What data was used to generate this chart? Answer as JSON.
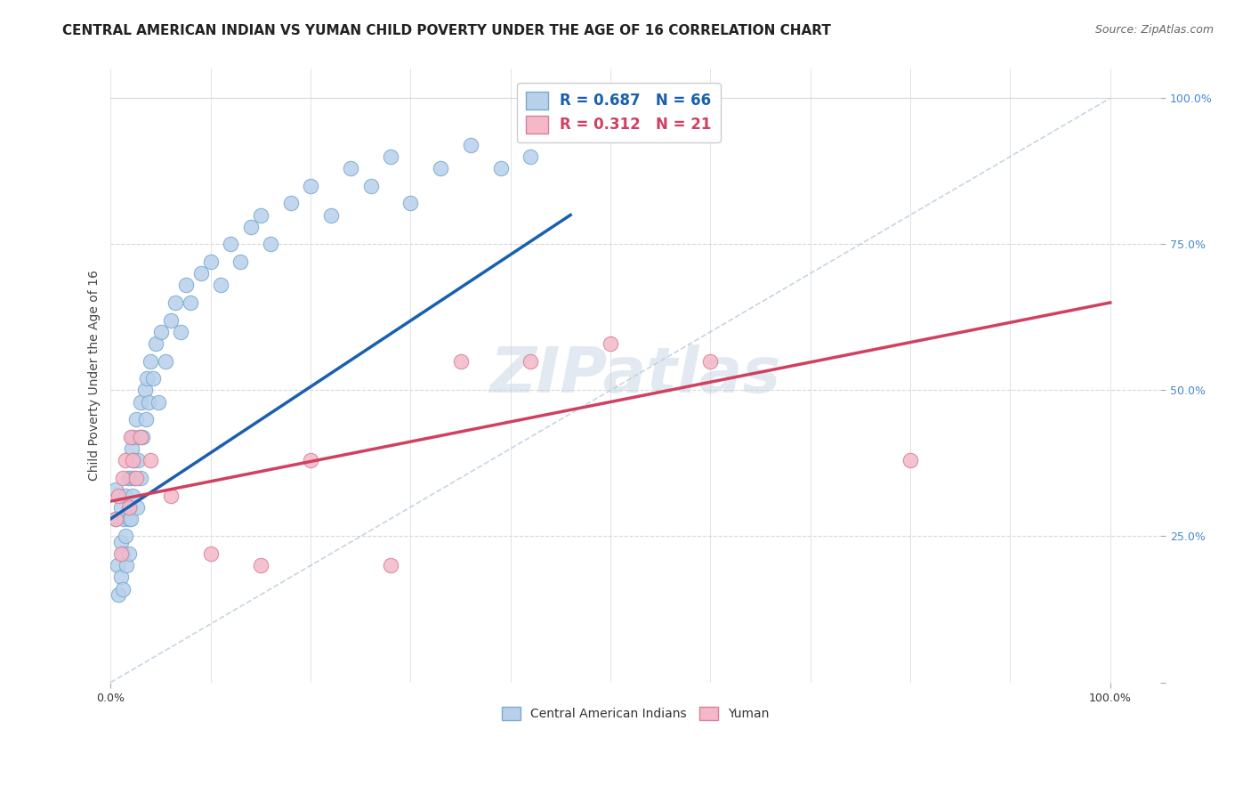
{
  "title": "CENTRAL AMERICAN INDIAN VS YUMAN CHILD POVERTY UNDER THE AGE OF 16 CORRELATION CHART",
  "source": "Source: ZipAtlas.com",
  "ylabel": "Child Poverty Under the Age of 16",
  "watermark": "ZIPatlas",
  "blue_R": 0.687,
  "blue_N": 66,
  "pink_R": 0.312,
  "pink_N": 21,
  "legend_labels": [
    "Central American Indians",
    "Yuman"
  ],
  "blue_color": "#b8d0ea",
  "blue_edge": "#7aaad0",
  "pink_color": "#f4b8c8",
  "pink_edge": "#d88098",
  "blue_line_color": "#1a5fb0",
  "pink_line_color": "#d04060",
  "ref_line_color": "#b0c4d8",
  "grid_color": "#d8d8d8",
  "blue_scatter_x": [
    0.005,
    0.005,
    0.007,
    0.008,
    0.01,
    0.01,
    0.01,
    0.012,
    0.012,
    0.013,
    0.015,
    0.015,
    0.016,
    0.017,
    0.018,
    0.018,
    0.019,
    0.02,
    0.02,
    0.021,
    0.022,
    0.022,
    0.023,
    0.024,
    0.025,
    0.026,
    0.027,
    0.028,
    0.03,
    0.03,
    0.032,
    0.034,
    0.035,
    0.036,
    0.038,
    0.04,
    0.042,
    0.045,
    0.048,
    0.05,
    0.055,
    0.06,
    0.065,
    0.07,
    0.075,
    0.08,
    0.09,
    0.1,
    0.11,
    0.12,
    0.13,
    0.14,
    0.15,
    0.16,
    0.18,
    0.2,
    0.22,
    0.24,
    0.26,
    0.28,
    0.3,
    0.33,
    0.36,
    0.39,
    0.42,
    0.46
  ],
  "blue_scatter_y": [
    0.33,
    0.28,
    0.2,
    0.15,
    0.3,
    0.24,
    0.18,
    0.22,
    0.16,
    0.28,
    0.32,
    0.25,
    0.2,
    0.35,
    0.28,
    0.22,
    0.3,
    0.35,
    0.28,
    0.4,
    0.42,
    0.32,
    0.38,
    0.35,
    0.45,
    0.3,
    0.38,
    0.42,
    0.48,
    0.35,
    0.42,
    0.5,
    0.45,
    0.52,
    0.48,
    0.55,
    0.52,
    0.58,
    0.48,
    0.6,
    0.55,
    0.62,
    0.65,
    0.6,
    0.68,
    0.65,
    0.7,
    0.72,
    0.68,
    0.75,
    0.72,
    0.78,
    0.8,
    0.75,
    0.82,
    0.85,
    0.8,
    0.88,
    0.85,
    0.9,
    0.82,
    0.88,
    0.92,
    0.88,
    0.9,
    0.95
  ],
  "pink_scatter_x": [
    0.005,
    0.008,
    0.01,
    0.012,
    0.015,
    0.018,
    0.02,
    0.022,
    0.025,
    0.03,
    0.04,
    0.06,
    0.1,
    0.15,
    0.2,
    0.28,
    0.35,
    0.42,
    0.5,
    0.6,
    0.8
  ],
  "pink_scatter_y": [
    0.28,
    0.32,
    0.22,
    0.35,
    0.38,
    0.3,
    0.42,
    0.38,
    0.35,
    0.42,
    0.38,
    0.32,
    0.22,
    0.2,
    0.38,
    0.2,
    0.55,
    0.55,
    0.58,
    0.55,
    0.38
  ],
  "blue_line_x0": 0.0,
  "blue_line_y0": 0.28,
  "blue_line_x1": 0.46,
  "blue_line_y1": 0.8,
  "pink_line_x0": 0.0,
  "pink_line_y0": 0.31,
  "pink_line_x1": 1.0,
  "pink_line_y1": 0.65,
  "ylim": [
    0.0,
    1.05
  ],
  "xlim": [
    0.0,
    1.05
  ],
  "yticks": [
    0.0,
    0.25,
    0.5,
    0.75,
    1.0
  ],
  "ytick_labels": [
    "",
    "25.0%",
    "50.0%",
    "75.0%",
    "100.0%"
  ],
  "xtick_labels": [
    "0.0%",
    "100.0%"
  ],
  "title_fontsize": 11,
  "source_fontsize": 9,
  "ylabel_fontsize": 10,
  "watermark_fontsize": 52,
  "watermark_color": "#c0d0e0",
  "watermark_alpha": 0.45
}
